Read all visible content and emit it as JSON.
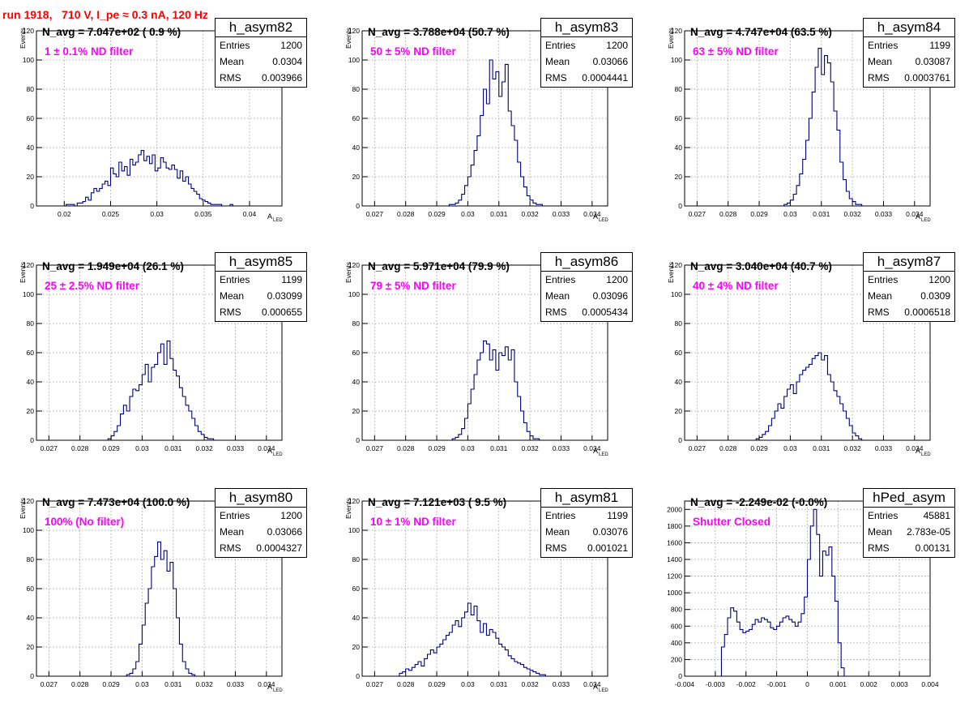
{
  "run_title": "run 1918,   710 V, I_pe ≈ 0.3 nA, 120 Hz",
  "colors": {
    "title": "#ff0000",
    "filter_text": "#ff00ff",
    "histogram": "#000080",
    "grid": "#999999"
  },
  "chart_data": [
    {
      "type": "bar",
      "histtype": "step",
      "title": "N_avg = 7.047e+02 ( 0.9 %)",
      "annotation": "1 ± 0.1% ND filter",
      "stats": {
        "name": "h_asym82",
        "entries": "1200",
        "mean": "0.0304",
        "rms": "0.003966"
      },
      "xlabel": "A",
      "xlabel_sub": "LED",
      "ylabel": "Events",
      "grid": true,
      "xlim": [
        0.017,
        0.0435
      ],
      "ylim": [
        0,
        120
      ],
      "xticks": [
        "0.02",
        "0.025",
        "0.03",
        "0.035",
        "0.04"
      ],
      "xtick_values": [
        0.02,
        0.025,
        0.03,
        0.035,
        0.04
      ],
      "yticks": [
        "0",
        "20",
        "40",
        "60",
        "80",
        "100",
        "120"
      ],
      "ytick_values": [
        0,
        20,
        40,
        60,
        80,
        100,
        120
      ],
      "bins": {
        "start": 0.0202,
        "width": 0.0003,
        "values": [
          1,
          1,
          1,
          0,
          2,
          2,
          3,
          6,
          4,
          9,
          12,
          10,
          12,
          15,
          17,
          14,
          26,
          22,
          20,
          30,
          24,
          27,
          21,
          32,
          28,
          30,
          35,
          38,
          31,
          34,
          29,
          35,
          24,
          26,
          33,
          30,
          26,
          25,
          28,
          25,
          19,
          24,
          17,
          20,
          15,
          12,
          10,
          8,
          5,
          4,
          3,
          2,
          1,
          1,
          1,
          1,
          0,
          0,
          0,
          1
        ]
      }
    },
    {
      "type": "bar",
      "histtype": "step",
      "title": "N_avg = 3.788e+04 (50.7 %)",
      "annotation": "50 ± 5% ND filter",
      "stats": {
        "name": "h_asym83",
        "entries": "1200",
        "mean": "0.03066",
        "rms": "0.0004441"
      },
      "xlabel": "A",
      "xlabel_sub": "LED",
      "ylabel": "Events",
      "grid": true,
      "xlim": [
        0.0266,
        0.0345
      ],
      "ylim": [
        0,
        120
      ],
      "xticks": [
        "0.027",
        "0.028",
        "0.029",
        "0.03",
        "0.031",
        "0.032",
        "0.033",
        "0.034"
      ],
      "xtick_values": [
        0.027,
        0.028,
        0.029,
        0.03,
        0.031,
        0.032,
        0.033,
        0.034
      ],
      "yticks": [
        "0",
        "20",
        "40",
        "60",
        "80",
        "100",
        "120"
      ],
      "ytick_values": [
        0,
        20,
        40,
        60,
        80,
        100,
        120
      ],
      "bins": {
        "start": 0.0294,
        "width": 0.0001,
        "values": [
          1,
          1,
          2,
          4,
          8,
          14,
          20,
          28,
          38,
          48,
          62,
          80,
          70,
          100,
          87,
          92,
          75,
          85,
          97,
          65,
          55,
          45,
          30,
          20,
          13,
          7,
          4,
          2,
          1,
          1
        ]
      }
    },
    {
      "type": "bar",
      "histtype": "step",
      "title": "N_avg = 4.747e+04 (63.5 %)",
      "annotation": "63 ± 5% ND filter",
      "stats": {
        "name": "h_asym84",
        "entries": "1199",
        "mean": "0.03087",
        "rms": "0.0003761"
      },
      "xlabel": "A",
      "xlabel_sub": "LED",
      "ylabel": "Events",
      "grid": true,
      "xlim": [
        0.0266,
        0.0345
      ],
      "ylim": [
        0,
        120
      ],
      "xticks": [
        "0.027",
        "0.028",
        "0.029",
        "0.03",
        "0.031",
        "0.032",
        "0.033",
        "0.034"
      ],
      "xtick_values": [
        0.027,
        0.028,
        0.029,
        0.03,
        0.031,
        0.032,
        0.033,
        0.034
      ],
      "yticks": [
        "0",
        "20",
        "40",
        "60",
        "80",
        "100",
        "120"
      ],
      "ytick_values": [
        0,
        20,
        40,
        60,
        80,
        100,
        120
      ],
      "bins": {
        "start": 0.0298,
        "width": 0.0001,
        "values": [
          1,
          2,
          4,
          8,
          14,
          22,
          32,
          45,
          60,
          78,
          95,
          108,
          90,
          103,
          98,
          85,
          65,
          52,
          30,
          18,
          10,
          5,
          3,
          1,
          1
        ]
      }
    },
    {
      "type": "bar",
      "histtype": "step",
      "title": "N_avg = 1.949e+04 (26.1 %)",
      "annotation": "25 ± 2.5% ND filter",
      "stats": {
        "name": "h_asym85",
        "entries": "1199",
        "mean": "0.03099",
        "rms": "0.000655"
      },
      "xlabel": "A",
      "xlabel_sub": "LED",
      "ylabel": "Events",
      "grid": true,
      "xlim": [
        0.0266,
        0.0345
      ],
      "ylim": [
        0,
        120
      ],
      "xticks": [
        "0.027",
        "0.028",
        "0.029",
        "0.03",
        "0.031",
        "0.032",
        "0.033",
        "0.034"
      ],
      "xtick_values": [
        0.027,
        0.028,
        0.029,
        0.03,
        0.031,
        0.032,
        0.033,
        0.034
      ],
      "yticks": [
        "0",
        "20",
        "40",
        "60",
        "80",
        "100",
        "120"
      ],
      "ytick_values": [
        0,
        20,
        40,
        60,
        80,
        100,
        120
      ],
      "bins": {
        "start": 0.0289,
        "width": 0.0001,
        "values": [
          1,
          3,
          6,
          10,
          18,
          24,
          20,
          30,
          35,
          34,
          38,
          45,
          52,
          40,
          50,
          52,
          60,
          66,
          52,
          68,
          56,
          48,
          44,
          36,
          30,
          24,
          20,
          15,
          10,
          6,
          4,
          2,
          1,
          1
        ]
      }
    },
    {
      "type": "bar",
      "histtype": "step",
      "title": "N_avg = 5.971e+04 (79.9 %)",
      "annotation": "79 ± 5% ND filter",
      "stats": {
        "name": "h_asym86",
        "entries": "1200",
        "mean": "0.03096",
        "rms": "0.0005434"
      },
      "xlabel": "A",
      "xlabel_sub": "LED",
      "ylabel": "Events",
      "grid": true,
      "xlim": [
        0.0266,
        0.0345
      ],
      "ylim": [
        0,
        120
      ],
      "xticks": [
        "0.027",
        "0.028",
        "0.029",
        "0.03",
        "0.031",
        "0.032",
        "0.033",
        "0.034"
      ],
      "xtick_values": [
        0.027,
        0.028,
        0.029,
        0.03,
        0.031,
        0.032,
        0.033,
        0.034
      ],
      "yticks": [
        "0",
        "20",
        "40",
        "60",
        "80",
        "100",
        "120"
      ],
      "ytick_values": [
        0,
        20,
        40,
        60,
        80,
        100,
        120
      ],
      "bins": {
        "start": 0.0295,
        "width": 0.0001,
        "values": [
          1,
          2,
          4,
          8,
          15,
          25,
          35,
          45,
          55,
          60,
          68,
          66,
          55,
          62,
          48,
          60,
          58,
          64,
          55,
          62,
          40,
          30,
          20,
          12,
          6,
          3,
          1,
          1
        ]
      }
    },
    {
      "type": "bar",
      "histtype": "step",
      "title": "N_avg = 3.040e+04 (40.7 %)",
      "annotation": "40 ± 4% ND filter",
      "stats": {
        "name": "h_asym87",
        "entries": "1200",
        "mean": "0.0309",
        "rms": "0.0006518"
      },
      "xlabel": "A",
      "xlabel_sub": "LED",
      "ylabel": "Events",
      "grid": true,
      "xlim": [
        0.0266,
        0.0345
      ],
      "ylim": [
        0,
        120
      ],
      "xticks": [
        "0.027",
        "0.028",
        "0.029",
        "0.03",
        "0.031",
        "0.032",
        "0.033",
        "0.034"
      ],
      "xtick_values": [
        0.027,
        0.028,
        0.029,
        0.03,
        0.031,
        0.032,
        0.033,
        0.034
      ],
      "yticks": [
        "0",
        "20",
        "40",
        "60",
        "80",
        "100",
        "120"
      ],
      "ytick_values": [
        0,
        20,
        40,
        60,
        80,
        100,
        120
      ],
      "bins": {
        "start": 0.0289,
        "width": 0.0001,
        "values": [
          1,
          2,
          4,
          6,
          10,
          15,
          20,
          25,
          22,
          30,
          35,
          38,
          32,
          40,
          45,
          48,
          50,
          52,
          56,
          58,
          60,
          55,
          58,
          45,
          40,
          34,
          30,
          25,
          20,
          15,
          10,
          5,
          3,
          1
        ]
      }
    },
    {
      "type": "bar",
      "histtype": "step",
      "title": "N_avg = 7.473e+04 (100.0 %)",
      "annotation": "100% (No filter)",
      "stats": {
        "name": "h_asym80",
        "entries": "1200",
        "mean": "0.03066",
        "rms": "0.0004327"
      },
      "xlabel": "A",
      "xlabel_sub": "LED",
      "ylabel": "Events",
      "grid": true,
      "xlim": [
        0.0266,
        0.0345
      ],
      "ylim": [
        0,
        120
      ],
      "xticks": [
        "0.027",
        "0.028",
        "0.029",
        "0.03",
        "0.031",
        "0.032",
        "0.033",
        "0.034"
      ],
      "xtick_values": [
        0.027,
        0.028,
        0.029,
        0.03,
        0.031,
        0.032,
        0.033,
        0.034
      ],
      "yticks": [
        "0",
        "20",
        "40",
        "60",
        "80",
        "100",
        "120"
      ],
      "ytick_values": [
        0,
        20,
        40,
        60,
        80,
        100,
        120
      ],
      "bins": {
        "start": 0.0295,
        "width": 0.0001,
        "values": [
          1,
          2,
          5,
          10,
          22,
          35,
          50,
          60,
          75,
          82,
          92,
          80,
          86,
          72,
          78,
          60,
          40,
          22,
          10,
          5,
          2,
          1
        ]
      }
    },
    {
      "type": "bar",
      "histtype": "step",
      "title": "N_avg = 7.121e+03 ( 9.5 %)",
      "annotation": "10 ± 1% ND filter",
      "stats": {
        "name": "h_asym81",
        "entries": "1199",
        "mean": "0.03076",
        "rms": "0.001021"
      },
      "xlabel": "A",
      "xlabel_sub": "LED",
      "ylabel": "Events",
      "grid": true,
      "xlim": [
        0.0266,
        0.0345
      ],
      "ylim": [
        0,
        120
      ],
      "xticks": [
        "0.027",
        "0.028",
        "0.029",
        "0.03",
        "0.031",
        "0.032",
        "0.033",
        "0.034"
      ],
      "xtick_values": [
        0.027,
        0.028,
        0.029,
        0.03,
        0.031,
        0.032,
        0.033,
        0.034
      ],
      "yticks": [
        "0",
        "20",
        "40",
        "60",
        "80",
        "100",
        "120"
      ],
      "ytick_values": [
        0,
        20,
        40,
        60,
        80,
        100,
        120
      ],
      "bins": {
        "start": 0.0278,
        "width": 0.0001,
        "values": [
          2,
          3,
          5,
          4,
          6,
          8,
          10,
          7,
          12,
          15,
          18,
          16,
          20,
          22,
          25,
          28,
          30,
          35,
          38,
          34,
          40,
          44,
          50,
          42,
          48,
          38,
          30,
          36,
          28,
          32,
          30,
          26,
          22,
          20,
          18,
          14,
          12,
          10,
          9,
          8,
          6,
          5,
          4,
          3,
          2,
          1,
          1
        ]
      }
    },
    {
      "type": "bar",
      "histtype": "step",
      "title": "N_avg = -2.249e-02 (-0.0%)",
      "annotation": "Shutter Closed",
      "stats": {
        "name": "hPed_asym",
        "entries": "45881",
        "mean": "2.783e-05",
        "rms": "0.00131"
      },
      "xlabel": "",
      "xlabel_sub": "",
      "ylabel": "",
      "grid": true,
      "xlim": [
        -0.004,
        0.004
      ],
      "ylim": [
        0,
        2100
      ],
      "xticks": [
        "-0.004",
        "-0.003",
        "-0.002",
        "-0.001",
        "0",
        "0.001",
        "0.002",
        "0.003",
        "0.004"
      ],
      "xtick_values": [
        -0.004,
        -0.003,
        -0.002,
        -0.001,
        0,
        0.001,
        0.002,
        0.003,
        0.004
      ],
      "yticks": [
        "0",
        "200",
        "400",
        "600",
        "800",
        "1000",
        "1200",
        "1400",
        "1600",
        "1800",
        "2000"
      ],
      "ytick_values": [
        0,
        200,
        400,
        600,
        800,
        1000,
        1200,
        1400,
        1600,
        1800,
        2000
      ],
      "bins": {
        "start": -0.0028,
        "width": 0.0001,
        "values": [
          350,
          500,
          700,
          820,
          780,
          650,
          560,
          520,
          540,
          560,
          620,
          680,
          650,
          700,
          680,
          650,
          580,
          560,
          600,
          650,
          700,
          720,
          680,
          650,
          600,
          650,
          750,
          950,
          1400,
          1800,
          2000,
          1700,
          1200,
          1500,
          1450,
          1550,
          1200,
          900,
          400,
          100
        ]
      }
    }
  ]
}
